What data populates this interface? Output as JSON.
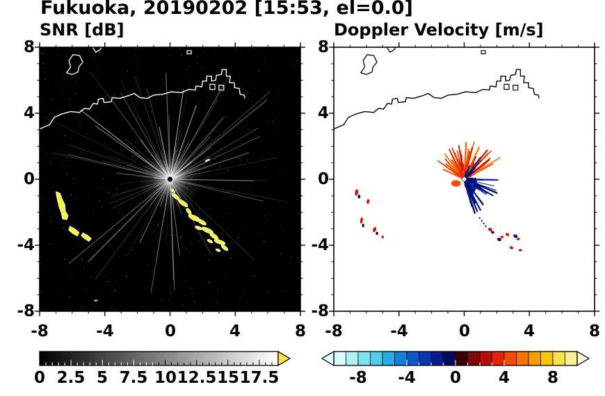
{
  "title": "Fukuoka, 20190202 [15:53, el=0.0]",
  "header": {
    "location": "Fukuoka",
    "date": "20190202",
    "time": "15:53",
    "elevation": "0.0"
  },
  "colors": {
    "snr_background": "#000000",
    "echo_yellow": "#f5f53c",
    "coast_snr": "#ffffff",
    "coast_doppler": "#000000",
    "snr_arrow": "#f5e636",
    "doppler_arrow_left": "#e6fdff",
    "doppler_arrow_right": "#fffbe0",
    "doppler_segments": [
      "#d8fbfb",
      "#aff2f6",
      "#7fe2f2",
      "#50ccee",
      "#28ace6",
      "#147fd8",
      "#0d58c8",
      "#0936b0",
      "#051c90",
      "#020b60",
      "#3a0005",
      "#7e0a08",
      "#b41208",
      "#e02408",
      "#f24c00",
      "#f87400",
      "#f89c00",
      "#f8c410",
      "#f8e34a",
      "#faf098"
    ],
    "palettes": {
      "warm": [
        "#f03800",
        "#e02500",
        "#ff5a00",
        "#c81600",
        "#ff7300",
        "#d83000"
      ],
      "warm_core": [
        "#f04600",
        "#ff5a00",
        "#e83000"
      ],
      "navy": [
        "#001878",
        "#04106a"
      ],
      "cool": [
        "#001488",
        "#000c60",
        "#1a28a8",
        "#00107a"
      ]
    }
  },
  "map": {
    "coast": [
      [
        -8,
        3.05
      ],
      [
        -7.4,
        3.3
      ],
      [
        -7.1,
        3.75
      ],
      [
        -6.65,
        3.95
      ],
      [
        -6.1,
        4.1
      ],
      [
        -5.55,
        4.05
      ],
      [
        -5.25,
        4.3
      ],
      [
        -4.95,
        4.25
      ],
      [
        -4.7,
        4.6
      ],
      [
        -4.45,
        4.55
      ],
      [
        -4.4,
        4.85
      ],
      [
        -4.1,
        4.9
      ],
      [
        -4.05,
        4.65
      ],
      [
        -3.6,
        4.7
      ],
      [
        -3.55,
        4.95
      ],
      [
        -3.1,
        4.9
      ],
      [
        -2.6,
        5.05
      ],
      [
        -2.2,
        5.2
      ],
      [
        -1.85,
        4.95
      ],
      [
        -1.4,
        4.9
      ],
      [
        -1.0,
        5.1
      ],
      [
        -0.45,
        5.15
      ],
      [
        0.1,
        5.3
      ],
      [
        0.7,
        5.25
      ],
      [
        1.15,
        5.45
      ],
      [
        1.55,
        5.4
      ],
      [
        1.6,
        5.65
      ],
      [
        1.95,
        5.6
      ],
      [
        2.0,
        5.95
      ],
      [
        2.25,
        5.95
      ],
      [
        2.25,
        6.25
      ],
      [
        2.55,
        6.25
      ],
      [
        2.55,
        5.95
      ],
      [
        2.8,
        6.0
      ],
      [
        2.85,
        6.3
      ],
      [
        3.15,
        6.35
      ],
      [
        3.2,
        6.65
      ],
      [
        3.45,
        6.65
      ],
      [
        3.45,
        6.25
      ],
      [
        3.7,
        6.25
      ],
      [
        3.65,
        5.85
      ],
      [
        3.95,
        5.85
      ],
      [
        3.95,
        5.55
      ],
      [
        4.25,
        5.5
      ],
      [
        4.3,
        5.15
      ],
      [
        4.55,
        5.1
      ],
      [
        4.6,
        4.9
      ]
    ],
    "islands": [
      [
        [
          -6.35,
          6.45
        ],
        [
          -6.1,
          6.8
        ],
        [
          -6.2,
          7.2
        ],
        [
          -5.95,
          7.55
        ],
        [
          -5.55,
          7.5
        ],
        [
          -5.35,
          7.1
        ],
        [
          -5.6,
          6.8
        ],
        [
          -5.65,
          6.5
        ],
        [
          -6.0,
          6.35
        ]
      ]
    ],
    "blocks": [
      [
        [
          2.45,
          5.45
        ],
        [
          2.75,
          5.45
        ],
        [
          2.75,
          5.75
        ],
        [
          2.45,
          5.75
        ]
      ],
      [
        [
          3.0,
          5.4
        ],
        [
          3.3,
          5.4
        ],
        [
          3.3,
          5.7
        ],
        [
          3.0,
          5.7
        ]
      ],
      [
        [
          1.05,
          7.6
        ],
        [
          1.3,
          7.6
        ],
        [
          1.3,
          7.8
        ],
        [
          1.05,
          7.8
        ]
      ]
    ],
    "open_lines": [
      [
        [
          -4.75,
          8.0
        ],
        [
          -4.55,
          7.7
        ],
        [
          -4.3,
          7.85
        ],
        [
          -4.2,
          8.0
        ]
      ]
    ]
  },
  "chart_data": [
    {
      "type": "heatmap",
      "title": "SNR [dB]",
      "xlim": [
        -8,
        8
      ],
      "ylim": [
        -8,
        8
      ],
      "xticks": [
        -8,
        -4,
        0,
        4,
        8
      ],
      "yticks": [
        -8,
        -4,
        0,
        4,
        8
      ],
      "grid": false,
      "colorbar": {
        "range": [
          0,
          19
        ],
        "ticks": [
          0,
          2.5,
          5,
          7.5,
          10,
          12.5,
          15,
          17.5
        ],
        "colormap": "grayscale",
        "extend": "max"
      },
      "radar_center": [
        0,
        0
      ],
      "blobs": [
        [
          [
            -7.0,
            -0.75
          ],
          [
            -6.75,
            -0.85
          ],
          [
            -6.62,
            -1.2
          ],
          [
            -6.45,
            -1.55
          ],
          [
            -6.42,
            -1.95
          ],
          [
            -6.25,
            -2.2
          ],
          [
            -6.33,
            -2.45
          ],
          [
            -6.6,
            -2.4
          ],
          [
            -6.66,
            -2.05
          ],
          [
            -6.8,
            -1.7
          ],
          [
            -6.9,
            -1.3
          ],
          [
            -6.97,
            -0.95
          ]
        ],
        [
          [
            -6.15,
            -2.85
          ],
          [
            -5.85,
            -3.0
          ],
          [
            -5.58,
            -3.22
          ],
          [
            -5.68,
            -3.45
          ],
          [
            -5.95,
            -3.3
          ],
          [
            -6.22,
            -3.08
          ]
        ],
        [
          [
            -5.35,
            -3.25
          ],
          [
            -5.05,
            -3.4
          ],
          [
            -4.83,
            -3.6
          ],
          [
            -4.98,
            -3.77
          ],
          [
            -5.28,
            -3.57
          ],
          [
            -5.45,
            -3.42
          ]
        ]
      ],
      "echoes": [
        [
          0.18,
          -0.7,
          0.15,
          0.07,
          40
        ],
        [
          0.35,
          -1.05,
          0.28,
          0.1,
          40
        ],
        [
          0.8,
          -1.45,
          0.35,
          0.12,
          35
        ],
        [
          1.15,
          -1.95,
          0.22,
          0.1,
          55
        ],
        [
          1.5,
          -2.35,
          0.4,
          0.14,
          25
        ],
        [
          1.95,
          -2.6,
          0.3,
          0.11,
          30
        ],
        [
          1.75,
          -2.95,
          0.22,
          0.09,
          20
        ],
        [
          2.3,
          -3.1,
          0.38,
          0.13,
          25
        ],
        [
          2.7,
          -3.45,
          0.3,
          0.12,
          35
        ],
        [
          2.45,
          -3.75,
          0.18,
          0.08,
          30
        ],
        [
          3.05,
          -3.8,
          0.35,
          0.12,
          20
        ],
        [
          3.35,
          -4.15,
          0.25,
          0.1,
          40
        ],
        [
          2.95,
          -4.3,
          0.15,
          0.07,
          20
        ]
      ],
      "extra_marks": [
        [
          2.3,
          1.15,
          0.18,
          0.06,
          -25,
          "#f0f040"
        ],
        [
          -4.55,
          -7.35,
          0.12,
          0.05,
          0,
          "#cccccc"
        ]
      ]
    },
    {
      "type": "heatmap",
      "title": "Doppler Velocity [m/s]",
      "xlim": [
        -8,
        8
      ],
      "ylim": [
        -8,
        8
      ],
      "xticks": [
        -8,
        -4,
        0,
        4,
        8
      ],
      "yticks": [
        -8,
        -4,
        0,
        4,
        8
      ],
      "grid": false,
      "colorbar": {
        "range": [
          -10,
          10
        ],
        "ticks": [
          -8,
          -4,
          0,
          4,
          8
        ],
        "colormap": "blue-red",
        "extend": "both"
      },
      "radar_center": [
        0,
        0
      ],
      "fans": [
        {
          "seed": 21,
          "angle_deg": [
            22,
            158
          ],
          "count": 90,
          "len": [
            0.45,
            2.6
          ],
          "width": [
            1,
            2.4
          ],
          "palette": "warm"
        },
        {
          "seed": 27,
          "angle_deg": [
            60,
            125
          ],
          "count": 28,
          "len": [
            0.2,
            1.0
          ],
          "width": [
            2.5,
            4
          ],
          "palette": "warm_core"
        },
        {
          "seed": 22,
          "angle_deg": [
            35,
            85
          ],
          "count": 14,
          "len": [
            0.5,
            1.9
          ],
          "width": [
            1,
            2
          ],
          "palette": "navy"
        },
        {
          "seed": 23,
          "angle_deg": [
            -80,
            8
          ],
          "count": 85,
          "len": [
            0.35,
            2.2
          ],
          "width": [
            1,
            2.6
          ],
          "palette": "cool"
        },
        {
          "seed": 25,
          "angle_deg": [
            -65,
            -5
          ],
          "count": 30,
          "len": [
            0.15,
            0.8
          ],
          "width": [
            2.5,
            4
          ],
          "palette": "cool"
        }
      ],
      "specks": [
        [
          -0.5,
          -0.25,
          0.3,
          0.2,
          0,
          "#f85000"
        ],
        [
          -6.6,
          -0.8,
          0.1,
          0.2,
          10,
          "#d81800"
        ],
        [
          -6.45,
          -1.05,
          0.08,
          0.12,
          0,
          "#001080"
        ],
        [
          -5.9,
          -1.35,
          0.09,
          0.15,
          10,
          "#d81800"
        ],
        [
          -6.3,
          -2.5,
          0.08,
          0.2,
          10,
          "#d81800"
        ],
        [
          -6.2,
          -2.8,
          0.07,
          0.12,
          0,
          "#001080"
        ],
        [
          -5.5,
          -3.05,
          0.1,
          0.16,
          20,
          "#d81800"
        ],
        [
          -5.35,
          -3.28,
          0.08,
          0.1,
          0,
          "#041070"
        ],
        [
          -5.0,
          -3.5,
          0.07,
          0.09,
          0,
          "#d81800"
        ],
        [
          1.6,
          -3.05,
          0.14,
          0.1,
          30,
          "#d81800"
        ],
        [
          1.75,
          -3.22,
          0.1,
          0.08,
          0,
          "#041070"
        ],
        [
          2.15,
          -3.65,
          0.13,
          0.1,
          20,
          "#041070"
        ],
        [
          2.32,
          -3.5,
          0.1,
          0.08,
          0,
          "#d81800"
        ],
        [
          2.65,
          -3.35,
          0.12,
          0.09,
          30,
          "#d81800"
        ],
        [
          3.15,
          -3.45,
          0.14,
          0.1,
          20,
          "#041070"
        ],
        [
          3.32,
          -3.62,
          0.1,
          0.08,
          0,
          "#d81800"
        ],
        [
          2.9,
          -4.15,
          0.12,
          0.09,
          30,
          "#d81800"
        ],
        [
          3.45,
          -4.3,
          0.1,
          0.07,
          0,
          "#b01000"
        ],
        [
          0.95,
          -2.35,
          0.05,
          0.05,
          0,
          "#041070"
        ],
        [
          1.08,
          -2.52,
          0.05,
          0.05,
          0,
          "#041070"
        ],
        [
          1.2,
          -2.68,
          0.05,
          0.05,
          0,
          "#041070"
        ],
        [
          1.32,
          -2.85,
          0.05,
          0.05,
          0,
          "#041070"
        ]
      ]
    }
  ]
}
